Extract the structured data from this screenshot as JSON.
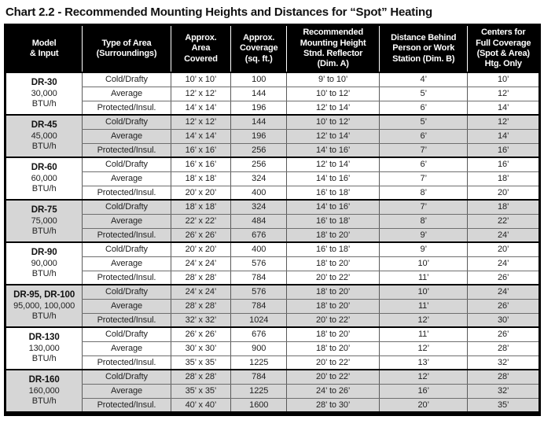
{
  "title": "Chart 2.2 - Recommended Mounting Heights and Distances for “Spot” Heating",
  "colors": {
    "header_bg": "#000000",
    "header_text": "#ffffff",
    "shaded_group_bg": "#d6d6d6",
    "border": "#000000"
  },
  "table": {
    "columns": [
      "Model\n& Input",
      "Type of Area\n(Surroundings)",
      "Approx.\nArea\nCovered",
      "Approx.\nCoverage\n(sq. ft.)",
      "Recommended\nMounting Height\nStnd. Reflector\n(Dim. A)",
      "Distance Behind\nPerson or Work\nStation (Dim. B)",
      "Centers for\nFull Coverage\n(Spot & Area)\nHtg. Only"
    ],
    "groups": [
      {
        "model": "DR-30",
        "input": "30,000",
        "unit": "BTU/h",
        "shaded": false,
        "rows": [
          [
            "Cold/Drafty",
            "10’ x 10’",
            "100",
            "9’ to 10’",
            "4’",
            "10’"
          ],
          [
            "Average",
            "12’ x 12’",
            "144",
            "10’ to 12’",
            "5’",
            "12’"
          ],
          [
            "Protected/Insul.",
            "14’ x 14’",
            "196",
            "12’ to 14’",
            "6’",
            "14’"
          ]
        ]
      },
      {
        "model": "DR-45",
        "input": "45,000",
        "unit": "BTU/h",
        "shaded": true,
        "rows": [
          [
            "Cold/Drafty",
            "12’ x 12’",
            "144",
            "10’ to 12’",
            "5’",
            "12’"
          ],
          [
            "Average",
            "14’ x 14’",
            "196",
            "12’ to 14’",
            "6’",
            "14’"
          ],
          [
            "Protected/Insul.",
            "16’ x 16’",
            "256",
            "14’ to 16’",
            "7’",
            "16’"
          ]
        ]
      },
      {
        "model": "DR-60",
        "input": "60,000",
        "unit": "BTU/h",
        "shaded": false,
        "rows": [
          [
            "Cold/Drafty",
            "16’ x 16’",
            "256",
            "12’ to 14’",
            "6’",
            "16’"
          ],
          [
            "Average",
            "18’ x 18’",
            "324",
            "14’ to 16’",
            "7’",
            "18’"
          ],
          [
            "Protected/Insul.",
            "20’ x 20’",
            "400",
            "16’ to 18’",
            "8’",
            "20’"
          ]
        ]
      },
      {
        "model": "DR-75",
        "input": "75,000",
        "unit": "BTU/h",
        "shaded": true,
        "rows": [
          [
            "Cold/Drafty",
            "18’ x 18’",
            "324",
            "14’ to 16’",
            "7’",
            "18’"
          ],
          [
            "Average",
            "22’ x 22’",
            "484",
            "16’ to 18’",
            "8’",
            "22’"
          ],
          [
            "Protected/Insul.",
            "26’ x 26’",
            "676",
            "18’ to 20’",
            "9’",
            "24’"
          ]
        ]
      },
      {
        "model": "DR-90",
        "input": "90,000",
        "unit": "BTU/h",
        "shaded": false,
        "rows": [
          [
            "Cold/Drafty",
            "20’ x 20’",
            "400",
            "16’ to 18’",
            "9’",
            "20’"
          ],
          [
            "Average",
            "24’ x 24’",
            "576",
            "18’ to 20’",
            "10’",
            "24’"
          ],
          [
            "Protected/Insul.",
            "28’ x 28’",
            "784",
            "20’ to 22’",
            "11’",
            "26’"
          ]
        ]
      },
      {
        "model": "DR-95, DR-100",
        "input": "95,000, 100,000",
        "unit": "BTU/h",
        "shaded": true,
        "rows": [
          [
            "Cold/Drafty",
            "24’ x 24’",
            "576",
            "18’ to 20’",
            "10’",
            "24’"
          ],
          [
            "Average",
            "28’ x 28’",
            "784",
            "18’ to 20’",
            "11’",
            "26’"
          ],
          [
            "Protected/Insul.",
            "32’ x 32’",
            "1024",
            "20’ to 22’",
            "12’",
            "30’"
          ]
        ]
      },
      {
        "model": "DR-130",
        "input": "130,000",
        "unit": "BTU/h",
        "shaded": false,
        "rows": [
          [
            "Cold/Drafty",
            "26’ x 26’",
            "676",
            "18’ to 20’",
            "11’",
            "26’"
          ],
          [
            "Average",
            "30’ x 30’",
            "900",
            "18’ to 20’",
            "12’",
            "28’"
          ],
          [
            "Protected/Insul.",
            "35’ x 35’",
            "1225",
            "20’ to 22’",
            "13’",
            "32’"
          ]
        ]
      },
      {
        "model": "DR-160",
        "input": "160,000",
        "unit": "BTU/h",
        "shaded": true,
        "rows": [
          [
            "Cold/Drafty",
            "28’ x 28’",
            "784",
            "20’ to 22’",
            "12’",
            "28’"
          ],
          [
            "Average",
            "35’ x 35’",
            "1225",
            "24’ to 26’",
            "16’",
            "32’"
          ],
          [
            "Protected/Insul.",
            "40’ x 40’",
            "1600",
            "28’ to 30’",
            "20’",
            "35’"
          ]
        ]
      }
    ]
  }
}
